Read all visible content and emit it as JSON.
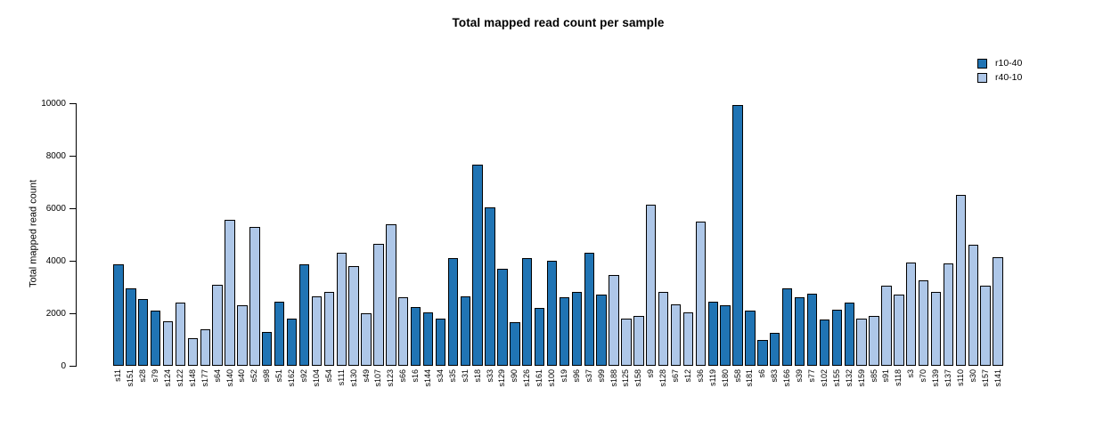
{
  "chart_data": {
    "type": "bar",
    "title": "Total mapped read count per sample",
    "xlabel": "",
    "ylabel": "Total mapped read count",
    "ylim": [
      0,
      10000
    ],
    "yticks": [
      0,
      2000,
      4000,
      6000,
      8000,
      10000
    ],
    "grid": false,
    "legend_position": "top-right",
    "series": [
      {
        "name": "r10-40",
        "color": "#2074B4"
      },
      {
        "name": "r40-10",
        "color": "#AEC7E8"
      }
    ],
    "bars_format": [
      "label",
      "value",
      "series_index"
    ],
    "bars": [
      [
        "s11",
        3850,
        0
      ],
      [
        "s151",
        2950,
        0
      ],
      [
        "s28",
        2550,
        0
      ],
      [
        "s79",
        2100,
        0
      ],
      [
        "s124",
        1700,
        1
      ],
      [
        "s122",
        2400,
        1
      ],
      [
        "s148",
        1050,
        1
      ],
      [
        "s177",
        1400,
        1
      ],
      [
        "s64",
        3100,
        1
      ],
      [
        "s140",
        5550,
        1
      ],
      [
        "s40",
        2300,
        1
      ],
      [
        "s52",
        5300,
        1
      ],
      [
        "s98",
        1300,
        0
      ],
      [
        "s51",
        2450,
        0
      ],
      [
        "s162",
        1800,
        0
      ],
      [
        "s92",
        3850,
        0
      ],
      [
        "s104",
        2650,
        1
      ],
      [
        "s54",
        2800,
        1
      ],
      [
        "s111",
        4300,
        1
      ],
      [
        "s130",
        3800,
        1
      ],
      [
        "s49",
        2000,
        1
      ],
      [
        "s107",
        4650,
        1
      ],
      [
        "s123",
        5400,
        1
      ],
      [
        "s66",
        2600,
        1
      ],
      [
        "s16",
        2250,
        0
      ],
      [
        "s144",
        2050,
        0
      ],
      [
        "s34",
        1800,
        0
      ],
      [
        "s35",
        4100,
        0
      ],
      [
        "s31",
        2650,
        0
      ],
      [
        "s18",
        7650,
        0
      ],
      [
        "s33",
        6050,
        0
      ],
      [
        "s129",
        3700,
        0
      ],
      [
        "s90",
        1650,
        0
      ],
      [
        "s126",
        4100,
        0
      ],
      [
        "s161",
        2200,
        0
      ],
      [
        "s100",
        4000,
        0
      ],
      [
        "s19",
        2600,
        0
      ],
      [
        "s96",
        2800,
        0
      ],
      [
        "s37",
        4300,
        0
      ],
      [
        "s99",
        2700,
        0
      ],
      [
        "s188",
        3450,
        1
      ],
      [
        "s125",
        1800,
        1
      ],
      [
        "s158",
        1900,
        1
      ],
      [
        "s9",
        6150,
        1
      ],
      [
        "s128",
        2800,
        1
      ],
      [
        "s67",
        2350,
        1
      ],
      [
        "s12",
        2050,
        1
      ],
      [
        "s36",
        5500,
        1
      ],
      [
        "s119",
        2450,
        0
      ],
      [
        "s180",
        2300,
        0
      ],
      [
        "s58",
        9950,
        0
      ],
      [
        "s181",
        2100,
        0
      ],
      [
        "s6",
        1000,
        0
      ],
      [
        "s83",
        1250,
        0
      ],
      [
        "s166",
        2950,
        0
      ],
      [
        "s39",
        2600,
        0
      ],
      [
        "s77",
        2750,
        0
      ],
      [
        "s102",
        1750,
        0
      ],
      [
        "s155",
        2150,
        0
      ],
      [
        "s132",
        2400,
        0
      ],
      [
        "s159",
        1800,
        1
      ],
      [
        "s85",
        1900,
        1
      ],
      [
        "s91",
        3050,
        1
      ],
      [
        "s118",
        2700,
        1
      ],
      [
        "s3",
        3950,
        1
      ],
      [
        "s70",
        3250,
        1
      ],
      [
        "s139",
        2800,
        1
      ],
      [
        "s137",
        3900,
        1
      ],
      [
        "s110",
        6500,
        1
      ],
      [
        "s30",
        4600,
        1
      ],
      [
        "s157",
        3050,
        1
      ],
      [
        "s141",
        4150,
        1
      ]
    ]
  }
}
